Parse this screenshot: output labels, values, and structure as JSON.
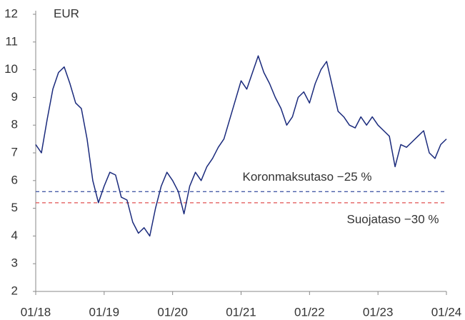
{
  "chart_data": {
    "type": "line",
    "y_label": "EUR",
    "x": [
      "01/18",
      "02/18",
      "03/18",
      "04/18",
      "05/18",
      "06/18",
      "07/18",
      "08/18",
      "09/18",
      "10/18",
      "11/18",
      "12/18",
      "01/19",
      "02/19",
      "03/19",
      "04/19",
      "05/19",
      "06/19",
      "07/19",
      "08/19",
      "09/19",
      "10/19",
      "11/19",
      "12/19",
      "01/20",
      "02/20",
      "03/20",
      "04/20",
      "05/20",
      "06/20",
      "07/20",
      "08/20",
      "09/20",
      "10/20",
      "11/20",
      "12/20",
      "01/21",
      "02/21",
      "03/21",
      "04/21",
      "05/21",
      "06/21",
      "07/21",
      "08/21",
      "09/21",
      "10/21",
      "11/21",
      "12/21",
      "01/22",
      "02/22",
      "03/22",
      "04/22",
      "05/22",
      "06/22",
      "07/22",
      "08/22",
      "09/22",
      "10/22",
      "11/22",
      "12/22",
      "01/23",
      "02/23",
      "03/23",
      "04/23",
      "05/23",
      "06/23",
      "07/23",
      "08/23",
      "09/23",
      "10/23",
      "11/23",
      "12/23",
      "01/24"
    ],
    "series": [
      {
        "color": "#1a2a7c",
        "values": [
          7.3,
          7.0,
          8.2,
          9.3,
          9.9,
          10.1,
          9.5,
          8.8,
          8.6,
          7.5,
          6.0,
          5.2,
          5.8,
          6.3,
          6.2,
          5.4,
          5.3,
          4.5,
          4.1,
          4.3,
          4.0,
          5.0,
          5.8,
          6.3,
          6.0,
          5.6,
          4.8,
          5.8,
          6.3,
          6.0,
          6.5,
          6.8,
          7.2,
          7.5,
          8.2,
          8.9,
          9.6,
          9.3,
          9.9,
          10.5,
          9.9,
          9.5,
          9.0,
          8.6,
          8.0,
          8.3,
          9.0,
          9.2,
          8.8,
          9.5,
          10.0,
          10.3,
          9.4,
          8.5,
          8.3,
          8.0,
          7.9,
          8.3,
          8.0,
          8.3,
          8.0,
          7.8,
          7.6,
          6.5,
          7.3,
          7.2,
          7.4,
          7.6,
          7.8,
          7.0,
          6.8,
          7.3,
          7.5
        ]
      }
    ],
    "reference_lines": [
      {
        "label": "Koronmaksutaso −25 %",
        "value": 5.6,
        "color": "#4a5fa8"
      },
      {
        "label": "Suojataso −30 %",
        "value": 5.2,
        "color": "#e05050"
      }
    ],
    "xticks": [
      "01/18",
      "01/19",
      "01/20",
      "01/21",
      "01/22",
      "01/23",
      "01/24"
    ],
    "ylim": [
      2,
      12
    ],
    "yticks": [
      2,
      3,
      4,
      5,
      6,
      7,
      8,
      9,
      10,
      11,
      12
    ]
  }
}
